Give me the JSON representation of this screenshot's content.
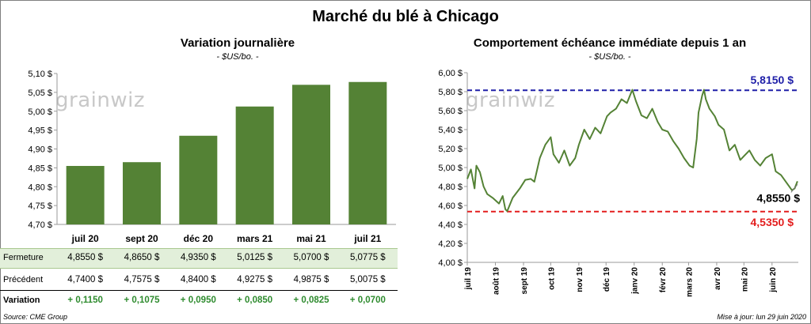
{
  "title": "Marché du blé à Chicago",
  "watermark": "grainwiz",
  "left": {
    "title": "Variation journalière",
    "unit": "- $US/bo. -",
    "y_ticks": [
      "5,10 $",
      "5,05 $",
      "5,00 $",
      "4,95 $",
      "4,90 $",
      "4,85 $",
      "4,80 $",
      "4,75 $",
      "4,70 $"
    ],
    "table": {
      "row_labels": [
        "Fermeture",
        "Précédent",
        "Variation"
      ],
      "fermeture": [
        "4,8550 $",
        "4,8650 $",
        "4,9350 $",
        "5,0125 $",
        "5,0700 $",
        "5,0775 $"
      ],
      "precedent": [
        "4,7400 $",
        "4,7575 $",
        "4,8400 $",
        "4,9275 $",
        "4,9875 $",
        "5,0075 $"
      ],
      "variation": [
        "+ 0,1150",
        "+ 0,1075",
        "+ 0,0950",
        "+ 0,0850",
        "+ 0,0825",
        "+ 0,0700"
      ]
    }
  },
  "right": {
    "title": "Comportement  échéance immédiate depuis 1 an",
    "unit": "- $US/bo. -",
    "y_ticks": [
      "6,00 $",
      "5,80 $",
      "5,60 $",
      "5,40 $",
      "5,20 $",
      "5,00 $",
      "4,80 $",
      "4,60 $",
      "4,40 $",
      "4,20 $",
      "4,00 $"
    ],
    "x_ticks": [
      "juil 19",
      "août 19",
      "sept 19",
      "oct 19",
      "nov 19",
      "déc 19",
      "janv 20",
      "févr 20",
      "mars 20",
      "avr 20",
      "mai 20",
      "juin 20"
    ],
    "max_label": "5,8150 $",
    "min_label": "4,5350 $",
    "last_label": "4,8550 $"
  },
  "footer": {
    "source": "Source: CME Group",
    "updated": "Mise à jour: lun 29 juin 2020"
  },
  "colors": {
    "bar": "#548235",
    "line": "#548235",
    "max": "#1f1fa8",
    "min": "#e31e1e",
    "row_highlight": "#e2efda",
    "variation": "#2e8b2e"
  },
  "chart_data": [
    {
      "type": "bar",
      "title": "Variation journalière",
      "ylabel": "$US/bo.",
      "categories": [
        "juil 20",
        "sept 20",
        "déc 20",
        "mars 21",
        "mai 21",
        "juil 21"
      ],
      "values": [
        4.855,
        4.865,
        4.935,
        5.0125,
        5.07,
        5.0775
      ],
      "ylim": [
        4.7,
        5.1
      ],
      "grid": false
    },
    {
      "type": "line",
      "title": "Comportement  échéance immédiate depuis 1 an",
      "ylabel": "$US/bo.",
      "ylim": [
        4.0,
        6.0
      ],
      "grid": false,
      "series": [
        {
          "x": [
            "2019-07-01",
            "2019-07-05",
            "2019-07-09",
            "2019-07-11",
            "2019-07-15",
            "2019-07-19",
            "2019-07-23",
            "2019-07-29",
            "2019-08-05",
            "2019-08-09",
            "2019-08-12",
            "2019-08-14",
            "2019-08-20",
            "2019-08-28",
            "2019-09-03",
            "2019-09-09",
            "2019-09-13",
            "2019-09-19",
            "2019-09-25",
            "2019-10-01",
            "2019-10-04",
            "2019-10-10",
            "2019-10-16",
            "2019-10-22",
            "2019-10-28",
            "2019-11-01",
            "2019-11-07",
            "2019-11-13",
            "2019-11-19",
            "2019-11-25",
            "2019-12-02",
            "2019-12-06",
            "2019-12-12",
            "2019-12-18",
            "2019-12-24",
            "2019-12-30",
            "2020-01-03",
            "2020-01-09",
            "2020-01-15",
            "2020-01-21",
            "2020-01-27",
            "2020-02-01",
            "2020-02-07",
            "2020-02-13",
            "2020-02-19",
            "2020-02-25",
            "2020-03-02",
            "2020-03-06",
            "2020-03-10",
            "2020-03-12",
            "2020-03-16",
            "2020-03-18",
            "2020-03-20",
            "2020-03-24",
            "2020-03-30",
            "2020-04-03",
            "2020-04-09",
            "2020-04-15",
            "2020-04-21",
            "2020-04-27",
            "2020-05-01",
            "2020-05-07",
            "2020-05-13",
            "2020-05-19",
            "2020-05-25",
            "2020-06-01",
            "2020-06-05",
            "2020-06-11",
            "2020-06-17",
            "2020-06-23",
            "2020-06-26",
            "2020-06-29"
          ],
          "values": [
            4.88,
            4.98,
            4.78,
            5.02,
            4.95,
            4.8,
            4.72,
            4.68,
            4.62,
            4.7,
            4.56,
            4.54,
            4.68,
            4.78,
            4.87,
            4.88,
            4.85,
            5.1,
            5.24,
            5.32,
            5.14,
            5.05,
            5.18,
            5.02,
            5.1,
            5.24,
            5.4,
            5.3,
            5.42,
            5.36,
            5.54,
            5.58,
            5.62,
            5.72,
            5.68,
            5.82,
            5.7,
            5.55,
            5.52,
            5.62,
            5.48,
            5.4,
            5.38,
            5.28,
            5.2,
            5.1,
            5.02,
            5.0,
            5.3,
            5.58,
            5.76,
            5.82,
            5.72,
            5.62,
            5.54,
            5.45,
            5.4,
            5.18,
            5.24,
            5.08,
            5.12,
            5.18,
            5.08,
            5.02,
            5.1,
            5.14,
            4.96,
            4.92,
            4.84,
            4.76,
            4.78,
            4.855
          ]
        }
      ],
      "annotations": [
        {
          "label": "5,8150 $",
          "y": 5.815
        },
        {
          "label": "4,5350 $",
          "y": 4.535
        },
        {
          "label": "4,8550 $",
          "y": 4.855
        }
      ]
    }
  ]
}
